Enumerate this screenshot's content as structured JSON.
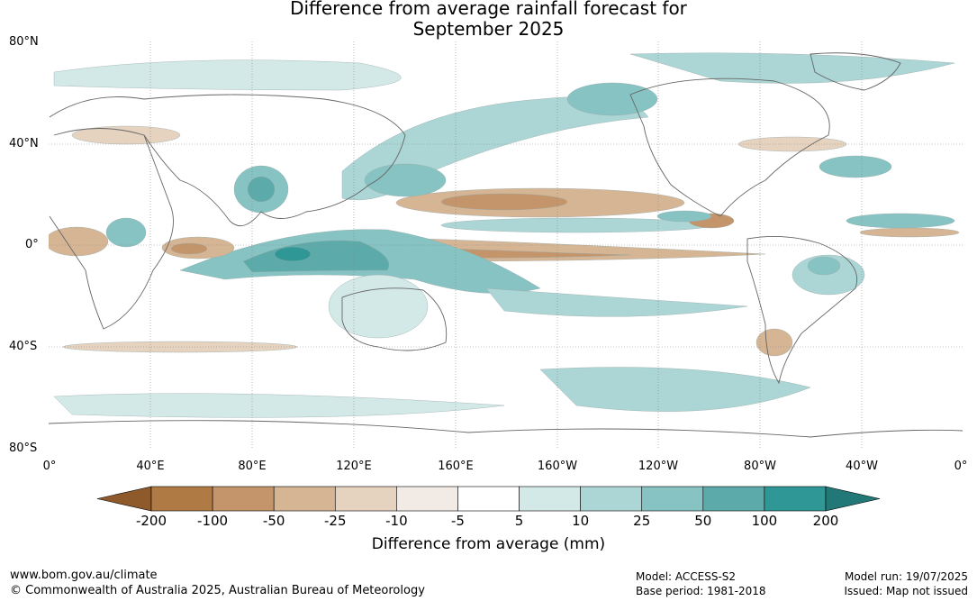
{
  "title_line1": "Difference from average rainfall forecast for",
  "title_line2": "September 2025",
  "lat_labels": [
    "80°N",
    "40°N",
    "0°",
    "40°S",
    "80°S"
  ],
  "lon_labels": [
    "0°",
    "40°E",
    "80°E",
    "120°E",
    "160°E",
    "160°W",
    "120°W",
    "80°W",
    "40°W",
    "0°"
  ],
  "legend": {
    "title": "Difference from average (mm)",
    "ticks": [
      "-200",
      "-100",
      "-50",
      "-25",
      "-10",
      "-5",
      "5",
      "10",
      "25",
      "50",
      "100",
      "200"
    ],
    "colors": [
      "#8f5a2b",
      "#b07a45",
      "#c4956a",
      "#d5b594",
      "#e5d2bf",
      "#f2ebe5",
      "#ffffff",
      "#d3e9e8",
      "#abd6d5",
      "#86c3c2",
      "#5cabaa",
      "#2f9896",
      "#217876"
    ]
  },
  "footer": {
    "website": "www.bom.gov.au/climate",
    "copyright": "© Commonwealth of Australia 2025, Australian Bureau of Meteorology",
    "model": "Model: ACCESS-S2",
    "base_period": "Base period: 1981-2018",
    "model_run": "Model run: 19/07/2025",
    "issued": "Issued: Map not issued"
  }
}
